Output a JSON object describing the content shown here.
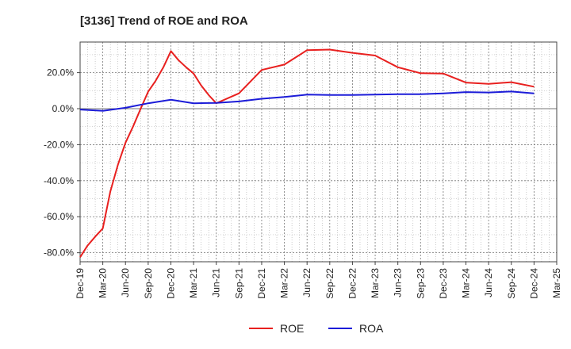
{
  "chart_data": {
    "type": "line",
    "title": "[3136]  Trend of ROE and ROA",
    "xlabel": "",
    "ylabel": "",
    "ylim": [
      -85,
      37
    ],
    "yticks": [
      20,
      0,
      -20,
      -40,
      -60,
      -80
    ],
    "ytick_labels": [
      "20.0%",
      "0.0%",
      "-20.0%",
      "-40.0%",
      "-60.0%",
      "-80.0%"
    ],
    "xlim": [
      0,
      21
    ],
    "xtick_labels": [
      "Dec-19",
      "Mar-20",
      "Jun-20",
      "Sep-20",
      "Dec-20",
      "Mar-21",
      "Jun-21",
      "Sep-21",
      "Dec-21",
      "Mar-22",
      "Jun-22",
      "Sep-22",
      "Dec-22",
      "Mar-23",
      "Jun-23",
      "Sep-23",
      "Dec-23",
      "Mar-24",
      "Jun-24",
      "Sep-24",
      "Dec-24",
      "Mar-25"
    ],
    "grid": true,
    "legend_position": "bottom-center",
    "series": [
      {
        "name": "ROE",
        "color": "#e8201f",
        "x": [
          0,
          0.33,
          0.67,
          1,
          1.33,
          1.67,
          2,
          2.33,
          2.67,
          3,
          3.33,
          3.67,
          4,
          4.33,
          4.67,
          5,
          5.33,
          5.67,
          6,
          7,
          8,
          9,
          10,
          11,
          12,
          13,
          14,
          15,
          16,
          17,
          18,
          19,
          20
        ],
        "values": [
          -82.5,
          -76,
          -71,
          -66.5,
          -46,
          -31,
          -19,
          -10,
          0,
          9.5,
          15.5,
          23,
          32,
          27,
          23,
          19.5,
          13,
          7.5,
          3,
          8.5,
          21.5,
          24.5,
          32.5,
          32.8,
          31,
          29.5,
          23,
          19.7,
          19.5,
          14.5,
          13.8,
          14.7,
          12.2
        ]
      },
      {
        "name": "ROA",
        "color": "#1c1cd8",
        "x": [
          0,
          1,
          2,
          3,
          4,
          5,
          6,
          7,
          8,
          9,
          10,
          11,
          12,
          13,
          14,
          15,
          16,
          17,
          18,
          19,
          20
        ],
        "values": [
          -0.5,
          -1.2,
          0.5,
          3,
          5,
          3,
          3.2,
          4,
          5.5,
          6.5,
          7.8,
          7.6,
          7.6,
          7.8,
          8,
          8,
          8.5,
          9.2,
          9,
          9.5,
          8.5
        ]
      }
    ]
  }
}
